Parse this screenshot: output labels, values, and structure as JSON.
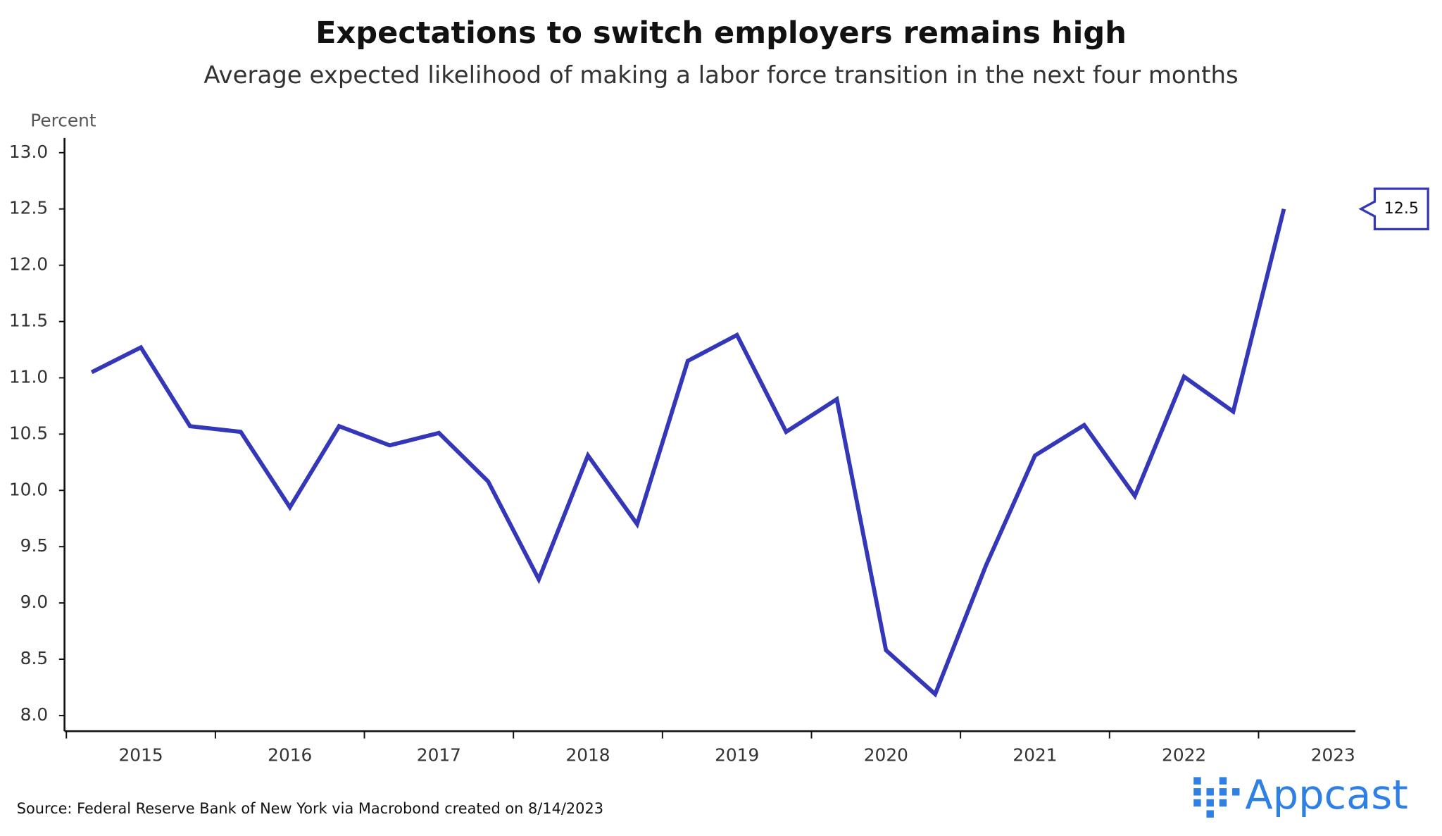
{
  "chart_data": {
    "type": "line",
    "title": "Expectations to switch employers remains high",
    "subtitle": "Average expected likelihood of making a labor force transition in the next four months",
    "y_label": "Percent",
    "source": "Source: Federal Reserve Bank of New York via Macrobond created on 8/14/2023",
    "logo": "Appcast",
    "x": [
      2015.17,
      2015.5,
      2015.83,
      2016.17,
      2016.5,
      2016.83,
      2017.17,
      2017.5,
      2017.83,
      2018.17,
      2018.5,
      2018.83,
      2019.17,
      2019.5,
      2019.83,
      2020.17,
      2020.5,
      2020.83,
      2021.17,
      2021.5,
      2021.83,
      2022.17,
      2022.5,
      2022.83,
      2023.17
    ],
    "series": [
      {
        "color": "#3437b8",
        "values": [
          11.05,
          11.27,
          10.57,
          10.52,
          9.85,
          10.57,
          10.4,
          10.51,
          10.08,
          9.21,
          10.31,
          9.7,
          11.15,
          11.38,
          10.52,
          10.81,
          8.58,
          8.19,
          9.33,
          10.31,
          10.58,
          9.95,
          11.01,
          10.7,
          12.5
        ]
      }
    ],
    "xlim": [
      2015,
      2023.65
    ],
    "xticks": [
      {
        "value": 2015.5,
        "label": "2015"
      },
      {
        "value": 2016.5,
        "label": "2016"
      },
      {
        "value": 2017.5,
        "label": "2017"
      },
      {
        "value": 2018.5,
        "label": "2018"
      },
      {
        "value": 2019.5,
        "label": "2019"
      },
      {
        "value": 2020.5,
        "label": "2020"
      },
      {
        "value": 2021.5,
        "label": "2021"
      },
      {
        "value": 2022.5,
        "label": "2022"
      },
      {
        "value": 2023.5,
        "label": "2023"
      }
    ],
    "x_boundary_ticks": [
      2015,
      2016,
      2017,
      2018,
      2019,
      2020,
      2021,
      2022,
      2023
    ],
    "ylim": [
      8.0,
      13.0
    ],
    "yticks": [
      {
        "value": 8,
        "label": "8.0"
      },
      {
        "value": 8.5,
        "label": "8.5"
      },
      {
        "value": 9,
        "label": "9.0"
      },
      {
        "value": 9.5,
        "label": "9.5"
      },
      {
        "value": 10,
        "label": "10.0"
      },
      {
        "value": 10.5,
        "label": "10.5"
      },
      {
        "value": 11,
        "label": "11.0"
      },
      {
        "value": 11.5,
        "label": "11.5"
      },
      {
        "value": 12,
        "label": "12.0"
      },
      {
        "value": 12.5,
        "label": "12.5"
      },
      {
        "value": 13,
        "label": "13.0"
      }
    ],
    "grid": false
  }
}
